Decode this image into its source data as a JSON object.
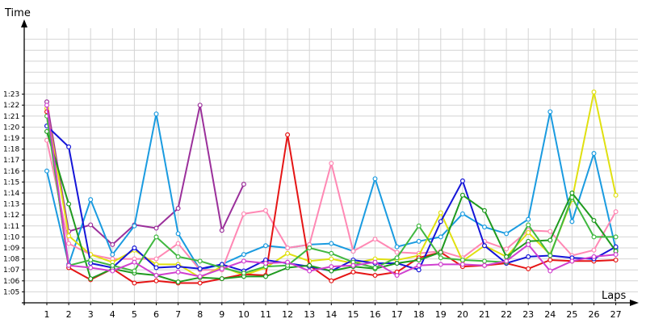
{
  "chart_data": {
    "type": "line",
    "title": "",
    "xlabel": "Laps",
    "ylabel": "Time",
    "x": [
      "1",
      "2",
      "3",
      "4",
      "5",
      "6",
      "7",
      "8",
      "9",
      "10",
      "11",
      "12",
      "13",
      "14",
      "15",
      "16",
      "17",
      "18",
      "19",
      "20",
      "21",
      "22",
      "23",
      "24",
      "25",
      "26",
      "27"
    ],
    "y_ticks": [
      "1:05",
      "1:06",
      "1:07",
      "1:08",
      "1:09",
      "1:10",
      "1:11",
      "1:12",
      "1:13",
      "1:14",
      "1:15",
      "1:16",
      "1:17",
      "1:18",
      "1:19",
      "1:20",
      "1:21",
      "1:22",
      "1:23"
    ],
    "ylim_seconds": [
      64,
      84
    ],
    "grid": true,
    "series": [
      {
        "color": "#9b309b",
        "values": [
          82.3,
          70.5,
          71.1,
          69.3,
          71.1,
          70.8,
          72.6,
          82.0,
          70.6,
          74.8,
          null,
          null,
          null,
          null,
          null,
          null,
          null,
          null,
          null,
          null,
          null,
          null,
          null,
          null,
          null,
          null,
          null
        ]
      },
      {
        "color": "#1a9be0",
        "values": [
          76.0,
          67.5,
          73.4,
          68.4,
          71.0,
          81.2,
          70.3,
          67.0,
          67.5,
          68.4,
          69.2,
          69.0,
          69.3,
          69.4,
          68.7,
          75.3,
          69.1,
          69.6,
          70.0,
          72.1,
          70.9,
          70.3,
          71.6,
          81.4,
          71.4,
          77.6,
          68.9
        ]
      },
      {
        "color": "#ff88b4",
        "values": [
          78.8,
          69.4,
          68.4,
          68.0,
          68.0,
          68.0,
          69.4,
          67.0,
          67.0,
          72.1,
          72.4,
          69.0,
          69.3,
          76.7,
          68.7,
          69.8,
          68.6,
          68.5,
          68.7,
          68.1,
          69.6,
          68.9,
          70.6,
          70.5,
          68.3,
          68.8,
          72.3
        ]
      },
      {
        "color": "#e0e010",
        "values": [
          81.7,
          70.1,
          68.4,
          67.7,
          68.8,
          67.5,
          67.5,
          66.3,
          67.3,
          66.5,
          67.2,
          68.5,
          67.8,
          68.0,
          67.6,
          68.0,
          67.9,
          68.3,
          72.2,
          67.8,
          69.2,
          68.2,
          70.4,
          68.4,
          73.4,
          83.2,
          73.8
        ]
      },
      {
        "color": "#e51515",
        "values": [
          81.4,
          67.2,
          66.1,
          67.1,
          65.8,
          66.0,
          65.8,
          65.8,
          66.2,
          66.6,
          66.5,
          79.3,
          67.4,
          66.0,
          66.8,
          66.5,
          66.8,
          68.1,
          68.6,
          67.3,
          67.4,
          67.6,
          67.1,
          67.9,
          67.8,
          67.8,
          67.9
        ]
      },
      {
        "color": "#1515d8",
        "values": [
          80.1,
          78.2,
          67.6,
          67.2,
          69.0,
          67.2,
          67.3,
          67.1,
          67.5,
          66.9,
          67.9,
          67.6,
          67.3,
          66.9,
          67.9,
          67.6,
          67.6,
          67.0,
          71.4,
          75.1,
          69.2,
          67.6,
          68.2,
          68.3,
          68.1,
          68.0,
          69.1
        ]
      },
      {
        "color": "#1f9a1f",
        "values": [
          79.6,
          73.0,
          66.2,
          67.1,
          66.7,
          66.5,
          65.9,
          66.3,
          66.2,
          66.4,
          66.4,
          67.2,
          67.4,
          66.9,
          67.3,
          67.1,
          67.6,
          67.9,
          68.6,
          73.8,
          72.4,
          68.2,
          69.6,
          69.7,
          74.0,
          71.5,
          68.7
        ]
      },
      {
        "color": "#40b840",
        "values": [
          81.0,
          67.4,
          67.9,
          67.4,
          66.9,
          70.0,
          68.2,
          67.8,
          67.2,
          66.7,
          67.3,
          67.4,
          69.0,
          68.5,
          67.7,
          67.2,
          68.1,
          71.0,
          68.1,
          67.9,
          67.8,
          67.7,
          71.1,
          68.3,
          73.6,
          70.0,
          70.0
        ]
      },
      {
        "color": "#d040d0",
        "values": [
          82.0,
          67.4,
          67.2,
          66.9,
          67.7,
          66.5,
          66.8,
          66.4,
          67.1,
          67.8,
          67.6,
          67.7,
          66.9,
          67.3,
          67.4,
          67.7,
          66.5,
          67.4,
          67.5,
          67.5,
          67.4,
          67.8,
          69.3,
          66.9,
          67.8,
          68.2,
          68.4
        ]
      }
    ]
  }
}
